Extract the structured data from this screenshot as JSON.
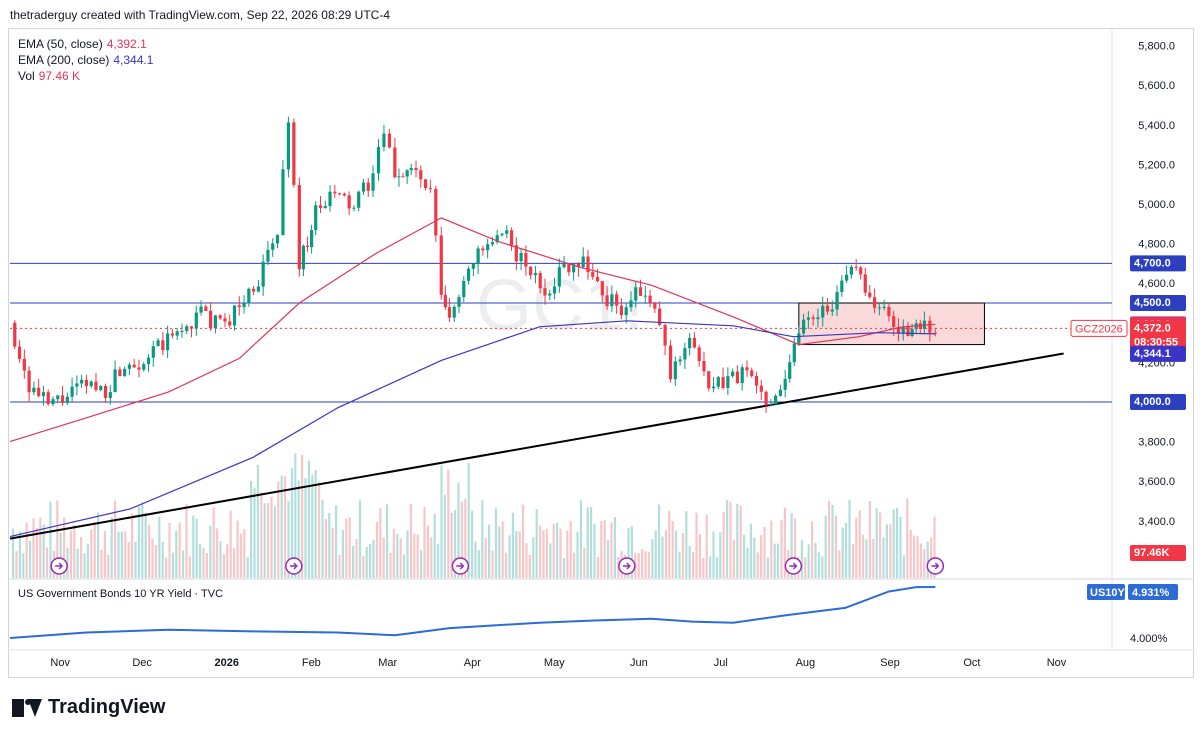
{
  "header": {
    "text": "thetraderguy created with TradingView.com, Sep 22, 2026 08:29 UTC-4"
  },
  "watermark": "GC1!",
  "legend": [
    {
      "label": "EMA (50, close)",
      "value": "4,392.1",
      "color": "#e0345c"
    },
    {
      "label": "EMA (200, close)",
      "value": "4,344.1",
      "color": "#3a35c6"
    },
    {
      "label": "Vol",
      "value": "97.46 K",
      "color": "#e0345c"
    }
  ],
  "sub_pane": {
    "title": "US Government Bonds 10 YR Yield · TVC",
    "symbol": "US10Y",
    "value": "4.931%",
    "axis_label": "4.000%"
  },
  "price_badges": {
    "ticker": "GCZ2026",
    "last": "4,372.0",
    "countdown": "08:30:55",
    "ema50": "4,392.1",
    "ema200": "4,344.1",
    "vol": "97.46K"
  },
  "footer": {
    "brand": "TradingView"
  },
  "colors": {
    "up": "#089981",
    "down": "#f23645",
    "ema50": "#e0345c",
    "ema200": "#3a35c6",
    "hline": "#2b3fbf",
    "trend": "#000000",
    "box": "#f8c9cb",
    "yield": "#2d6bd6"
  },
  "chart_data": {
    "type": "line",
    "title": "GC1!",
    "y_axis": {
      "ticks": [
        "5,800.0",
        "5,600.0",
        "5,400.0",
        "5,200.0",
        "5,000.0",
        "4,800.0",
        "4,600.0",
        "4,400.0",
        "4,200.0",
        "4,000.0",
        "3,800.0",
        "3,600.0",
        "3,400.0"
      ],
      "range": [
        3200,
        5900
      ]
    },
    "x_axis": {
      "ticks": [
        "Nov",
        "Dec",
        "2026",
        "Feb",
        "Mar",
        "Apr",
        "May",
        "Jun",
        "Jul",
        "Aug",
        "Sep",
        "Oct",
        "Nov"
      ]
    },
    "horizontal_lines": [
      {
        "price": 4700,
        "label": "4,700.0"
      },
      {
        "price": 4500,
        "label": "4,500.0"
      },
      {
        "price": 4000,
        "label": "4,000.0"
      }
    ],
    "trendline": {
      "from": {
        "date": "2025-10-18",
        "price": 3310
      },
      "to": {
        "date": "2026-11-08",
        "price": 4245
      }
    },
    "consolidation_box": {
      "from": "2026-08-03",
      "to": "2026-10-10",
      "top": 4500,
      "bottom": 4290
    },
    "series": [
      {
        "name": "GC1! close",
        "points": [
          [
            "2025-10-18",
            4400
          ],
          [
            "2025-10-25",
            4080
          ],
          [
            "2025-11-01",
            3980
          ],
          [
            "2025-11-08",
            4030
          ],
          [
            "2025-11-15",
            4090
          ],
          [
            "2025-11-22",
            4060
          ],
          [
            "2025-11-29",
            4200
          ],
          [
            "2025-12-06",
            4210
          ],
          [
            "2025-12-13",
            4290
          ],
          [
            "2025-12-20",
            4360
          ],
          [
            "2025-12-27",
            4450
          ],
          [
            "2026-01-03",
            4380
          ],
          [
            "2026-01-10",
            4480
          ],
          [
            "2026-01-17",
            4620
          ],
          [
            "2026-01-24",
            4850
          ],
          [
            "2026-01-28",
            5450
          ],
          [
            "2026-02-01",
            4700
          ],
          [
            "2026-02-07",
            4950
          ],
          [
            "2026-02-14",
            5050
          ],
          [
            "2026-02-21",
            4980
          ],
          [
            "2026-02-28",
            5150
          ],
          [
            "2026-03-04",
            5350
          ],
          [
            "2026-03-08",
            5150
          ],
          [
            "2026-03-14",
            5180
          ],
          [
            "2026-03-21",
            5050
          ],
          [
            "2026-03-25",
            4550
          ],
          [
            "2026-03-28",
            4400
          ],
          [
            "2026-04-04",
            4700
          ],
          [
            "2026-04-11",
            4780
          ],
          [
            "2026-04-18",
            4830
          ],
          [
            "2026-04-25",
            4680
          ],
          [
            "2026-05-02",
            4560
          ],
          [
            "2026-05-09",
            4680
          ],
          [
            "2026-05-16",
            4730
          ],
          [
            "2026-05-23",
            4540
          ],
          [
            "2026-05-30",
            4470
          ],
          [
            "2026-06-06",
            4560
          ],
          [
            "2026-06-13",
            4400
          ],
          [
            "2026-06-17",
            4120
          ],
          [
            "2026-06-24",
            4350
          ],
          [
            "2026-07-01",
            4050
          ],
          [
            "2026-07-08",
            4120
          ],
          [
            "2026-07-15",
            4150
          ],
          [
            "2026-07-22",
            4000
          ],
          [
            "2026-07-29",
            4120
          ],
          [
            "2026-08-03",
            4380
          ],
          [
            "2026-08-10",
            4460
          ],
          [
            "2026-08-17",
            4520
          ],
          [
            "2026-08-24",
            4720
          ],
          [
            "2026-08-29",
            4520
          ],
          [
            "2026-09-05",
            4420
          ],
          [
            "2026-09-12",
            4340
          ],
          [
            "2026-09-18",
            4400
          ],
          [
            "2026-09-22",
            4372
          ]
        ]
      },
      {
        "name": "EMA 50",
        "points": [
          [
            "2025-10-18",
            3800
          ],
          [
            "2025-11-15",
            3920
          ],
          [
            "2025-12-15",
            4050
          ],
          [
            "2026-01-10",
            4220
          ],
          [
            "2026-02-01",
            4500
          ],
          [
            "2026-03-01",
            4750
          ],
          [
            "2026-03-25",
            4930
          ],
          [
            "2026-04-15",
            4810
          ],
          [
            "2026-05-15",
            4680
          ],
          [
            "2026-06-10",
            4590
          ],
          [
            "2026-07-10",
            4430
          ],
          [
            "2026-08-03",
            4290
          ],
          [
            "2026-08-25",
            4330
          ],
          [
            "2026-09-10",
            4380
          ],
          [
            "2026-09-22",
            4392
          ]
        ]
      },
      {
        "name": "EMA 200",
        "points": [
          [
            "2025-10-18",
            3320
          ],
          [
            "2025-12-01",
            3460
          ],
          [
            "2026-01-15",
            3720
          ],
          [
            "2026-02-15",
            3970
          ],
          [
            "2026-03-25",
            4210
          ],
          [
            "2026-04-30",
            4380
          ],
          [
            "2026-06-01",
            4410
          ],
          [
            "2026-07-10",
            4385
          ],
          [
            "2026-08-01",
            4330
          ],
          [
            "2026-09-01",
            4350
          ],
          [
            "2026-09-22",
            4344
          ]
        ]
      },
      {
        "name": "US10Y",
        "points": [
          [
            "2025-10-18",
            4.0
          ],
          [
            "2025-11-15",
            4.1
          ],
          [
            "2025-12-15",
            4.15
          ],
          [
            "2026-01-15",
            4.12
          ],
          [
            "2026-02-15",
            4.1
          ],
          [
            "2026-03-08",
            4.05
          ],
          [
            "2026-03-28",
            4.18
          ],
          [
            "2026-04-30",
            4.28
          ],
          [
            "2026-05-20",
            4.32
          ],
          [
            "2026-06-10",
            4.35
          ],
          [
            "2026-06-25",
            4.3
          ],
          [
            "2026-07-10",
            4.28
          ],
          [
            "2026-07-30",
            4.42
          ],
          [
            "2026-08-20",
            4.55
          ],
          [
            "2026-09-05",
            4.85
          ],
          [
            "2026-09-15",
            4.93
          ],
          [
            "2026-09-22",
            4.931
          ]
        ]
      }
    ],
    "volume_markers": [
      "2025-11-05",
      "2026-01-30",
      "2026-04-01",
      "2026-06-01",
      "2026-08-01",
      "2026-09-22"
    ]
  }
}
